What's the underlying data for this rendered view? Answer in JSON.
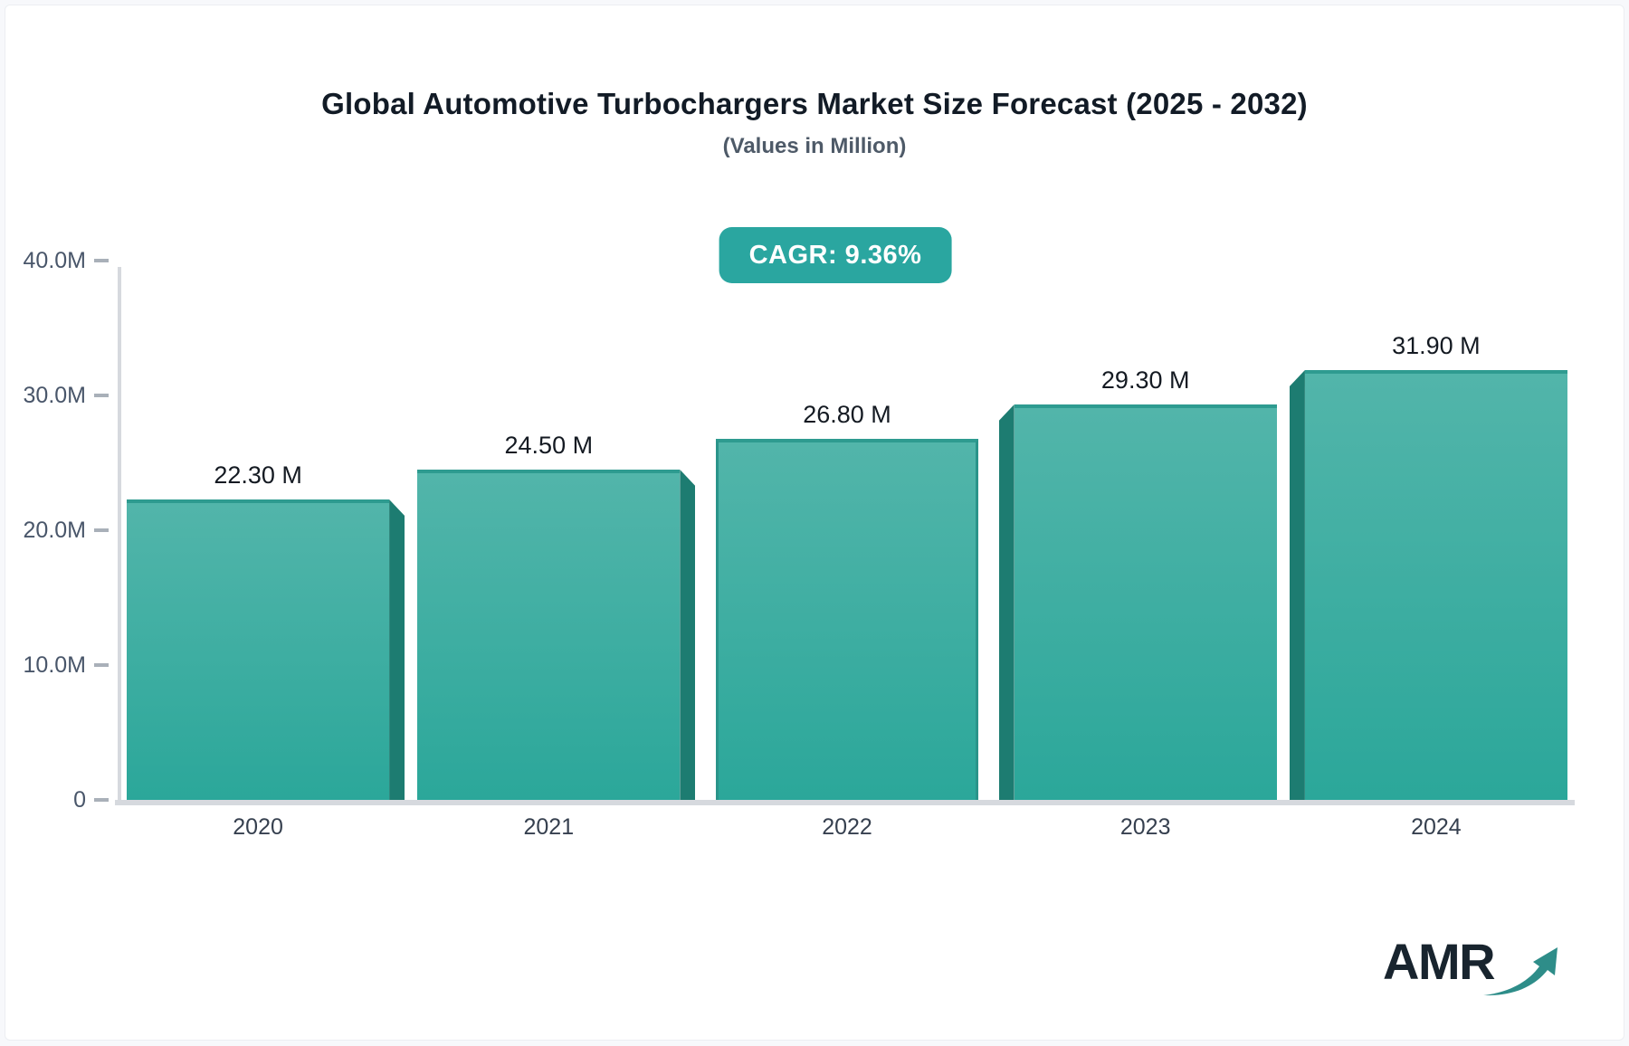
{
  "page": {
    "background_color": "#f7f8fb",
    "card_background_color": "#ffffff"
  },
  "header": {
    "title": "Global Automotive Turbochargers Market Size Forecast (2025 - 2032)",
    "subtitle": "(Values in Million)",
    "badge": {
      "label": "CAGR: 9.36%",
      "background_color": "#2aa6a0",
      "text_color": "#ffffff"
    }
  },
  "chart_data": {
    "type": "bar",
    "title": "Global Automotive Turbochargers Market Size Forecast (2025 - 2032)",
    "subtitle": "(Values in Million)",
    "unit": "Million",
    "cagr": "9.36%",
    "categories": [
      "2020",
      "2021",
      "2022",
      "2023",
      "2024"
    ],
    "values": [
      22.3,
      24.5,
      26.8,
      29.3,
      31.9
    ],
    "value_labels": [
      "22.30 M",
      "24.50 M",
      "26.80 M",
      "29.30 M",
      "31.90 M"
    ],
    "xlabel": "",
    "ylabel": "",
    "ylim": [
      0,
      40
    ],
    "yticks": [
      {
        "value": 0,
        "label": "0"
      },
      {
        "value": 10,
        "label": "10.0M"
      },
      {
        "value": 20,
        "label": "20.0M"
      },
      {
        "value": 30,
        "label": "30.0M"
      },
      {
        "value": 40,
        "label": "40.0M"
      }
    ],
    "grid": false,
    "legend": false,
    "bar_style": "3d-beveled-perspective",
    "bar_colors": {
      "front_top": "#52b5aa",
      "front_bottom": "#2ba79a",
      "side_face": "#1d7c71",
      "top_edge": "#2e9b90",
      "edge_line": "#2a948a"
    },
    "axis_color": "#d6d9de",
    "tick_color": "#a9b0b9",
    "label_color": "#49566a"
  },
  "logo": {
    "text": "AMR",
    "icon": "growth-arrow-icon",
    "text_color": "#18242e",
    "arrow_color": "#2e8d89"
  }
}
